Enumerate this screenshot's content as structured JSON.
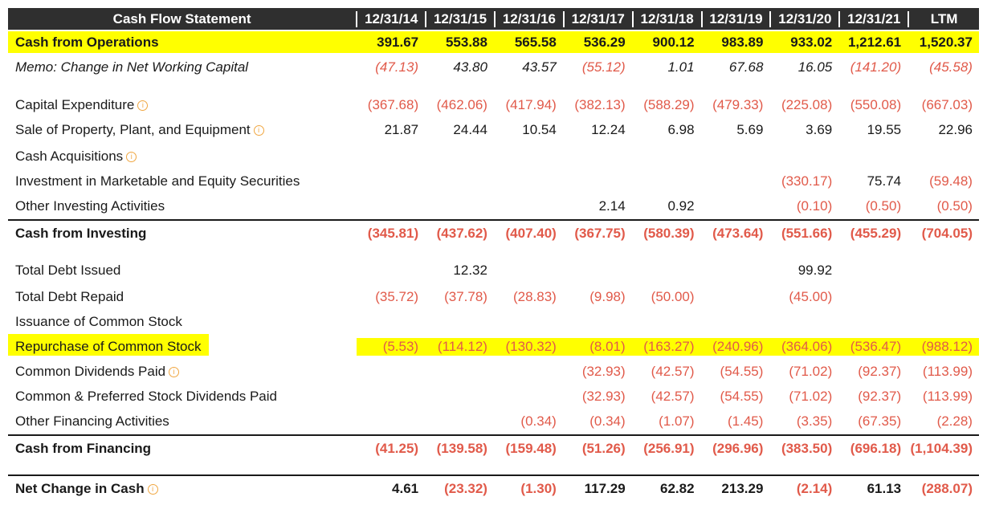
{
  "header": {
    "title": "Cash Flow Statement",
    "columns": [
      "12/31/14",
      "12/31/15",
      "12/31/16",
      "12/31/17",
      "12/31/18",
      "12/31/19",
      "12/31/20",
      "12/31/21",
      "LTM"
    ]
  },
  "colors": {
    "negative": "#e15a4a",
    "highlight": "#ffff00",
    "header_bg": "#2f2f2f",
    "info_icon": "#f0a640"
  },
  "rows": [
    {
      "label": "Cash from Operations",
      "bold": true,
      "highlight": "full",
      "values": [
        "391.67",
        "553.88",
        "565.58",
        "536.29",
        "900.12",
        "983.89",
        "933.02",
        "1,212.61",
        "1,520.37"
      ]
    },
    {
      "label": "Memo: Change in Net Working Capital",
      "italic": true,
      "values": [
        "(47.13)",
        "43.80",
        "43.57",
        "(55.12)",
        "1.01",
        "67.68",
        "16.05",
        "(141.20)",
        "(45.58)"
      ]
    },
    {
      "label": "Capital Expenditure",
      "info": true,
      "values": [
        "(367.68)",
        "(462.06)",
        "(417.94)",
        "(382.13)",
        "(588.29)",
        "(479.33)",
        "(225.08)",
        "(550.08)",
        "(667.03)"
      ]
    },
    {
      "label": "Sale of Property, Plant, and Equipment",
      "info": true,
      "values": [
        "21.87",
        "24.44",
        "10.54",
        "12.24",
        "6.98",
        "5.69",
        "3.69",
        "19.55",
        "22.96"
      ]
    },
    {
      "label": "Cash Acquisitions",
      "info": true,
      "values": [
        "",
        "",
        "",
        "",
        "",
        "",
        "",
        "",
        ""
      ]
    },
    {
      "label": "Investment in Marketable and Equity Securities",
      "values": [
        "",
        "",
        "",
        "",
        "",
        "",
        "(330.17)",
        "75.74",
        "(59.48)"
      ]
    },
    {
      "label": "Other Investing Activities",
      "values": [
        "",
        "",
        "",
        "2.14",
        "0.92",
        "",
        "(0.10)",
        "(0.50)",
        "(0.50)"
      ]
    },
    {
      "label": "Cash from Investing",
      "bold": true,
      "values": [
        "(345.81)",
        "(437.62)",
        "(407.40)",
        "(367.75)",
        "(580.39)",
        "(473.64)",
        "(551.66)",
        "(455.29)",
        "(704.05)"
      ]
    },
    {
      "label": "Total Debt Issued",
      "values": [
        "",
        "12.32",
        "",
        "",
        "",
        "",
        "99.92",
        "",
        ""
      ]
    },
    {
      "label": "Total Debt Repaid",
      "values": [
        "(35.72)",
        "(37.78)",
        "(28.83)",
        "(9.98)",
        "(50.00)",
        "",
        "(45.00)",
        "",
        ""
      ]
    },
    {
      "label": "Issuance of Common Stock",
      "values": [
        "",
        "",
        "",
        "",
        "",
        "",
        "",
        "",
        ""
      ]
    },
    {
      "label": "Repurchase of Common Stock",
      "highlight": "marker",
      "values": [
        "(5.53)",
        "(114.12)",
        "(130.32)",
        "(8.01)",
        "(163.27)",
        "(240.96)",
        "(364.06)",
        "(536.47)",
        "(988.12)"
      ]
    },
    {
      "label": "Common Dividends Paid",
      "info": true,
      "values": [
        "",
        "",
        "",
        "(32.93)",
        "(42.57)",
        "(54.55)",
        "(71.02)",
        "(92.37)",
        "(113.99)"
      ]
    },
    {
      "label": "Common & Preferred Stock Dividends Paid",
      "values": [
        "",
        "",
        "",
        "(32.93)",
        "(42.57)",
        "(54.55)",
        "(71.02)",
        "(92.37)",
        "(113.99)"
      ]
    },
    {
      "label": "Other Financing Activities",
      "values": [
        "",
        "",
        "(0.34)",
        "(0.34)",
        "(1.07)",
        "(1.45)",
        "(3.35)",
        "(67.35)",
        "(2.28)"
      ]
    },
    {
      "label": "Cash from Financing",
      "bold": true,
      "values": [
        "(41.25)",
        "(139.58)",
        "(159.48)",
        "(51.26)",
        "(256.91)",
        "(296.96)",
        "(383.50)",
        "(696.18)",
        "(1,104.39)"
      ]
    },
    {
      "label": "Net Change in Cash",
      "bold": true,
      "info": true,
      "values": [
        "4.61",
        "(23.32)",
        "(1.30)",
        "117.29",
        "62.82",
        "213.29",
        "(2.14)",
        "61.13",
        "(288.07)"
      ]
    }
  ]
}
